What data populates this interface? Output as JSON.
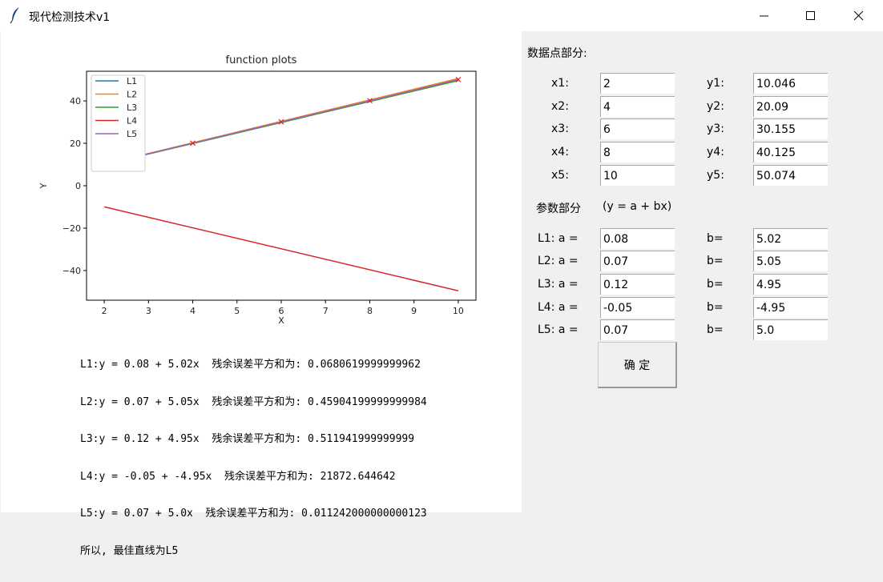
{
  "window": {
    "title": "现代检测技术v1",
    "icon": "feather-icon"
  },
  "plot": {
    "title": "function plots",
    "xlabel": "X",
    "ylabel": "Y"
  },
  "chart_data": {
    "type": "line",
    "title": "function plots",
    "xlabel": "X",
    "ylabel": "Y",
    "xlim": [
      1.6,
      10.4
    ],
    "ylim": [
      -54,
      54
    ],
    "xticks": [
      2,
      3,
      4,
      5,
      6,
      7,
      8,
      9,
      10
    ],
    "yticks": [
      -40,
      -20,
      0,
      20,
      40
    ],
    "legend": "top-left",
    "grid": false,
    "series": [
      {
        "name": "L1",
        "a": 0.08,
        "b": 5.02,
        "color": "#1f77b4"
      },
      {
        "name": "L2",
        "a": 0.07,
        "b": 5.05,
        "color": "#ff7f0e"
      },
      {
        "name": "L3",
        "a": 0.12,
        "b": 4.95,
        "color": "#2ca02c"
      },
      {
        "name": "L4",
        "a": -0.05,
        "b": -4.95,
        "color": "#d62728"
      },
      {
        "name": "L5",
        "a": 0.07,
        "b": 5.0,
        "color": "#9467bd"
      }
    ],
    "points": {
      "x": [
        2,
        4,
        6,
        8,
        10
      ],
      "y": [
        10.046,
        20.09,
        30.155,
        40.125,
        50.074
      ],
      "marker": "x",
      "color": "#d62728"
    }
  },
  "results": [
    "L1:y = 0.08 + 5.02x  残余误差平方和为: 0.0680619999999962",
    "L2:y = 0.07 + 5.05x  残余误差平方和为: 0.45904199999999984",
    "L3:y = 0.12 + 4.95x  残余误差平方和为: 0.511941999999999",
    "L4:y = -0.05 + -4.95x  残余误差平方和为: 21872.644642",
    "L5:y = 0.07 + 5.0x  残余误差平方和为: 0.011242000000000123",
    "所以, 最佳直线为L5"
  ],
  "form": {
    "data_header": "数据点部分:",
    "points": [
      {
        "xlabel": "x1:",
        "x": "2",
        "ylabel": "y1:",
        "y": "10.046"
      },
      {
        "xlabel": "x2:",
        "x": "4",
        "ylabel": "y2:",
        "y": "20.09"
      },
      {
        "xlabel": "x3:",
        "x": "6",
        "ylabel": "y3:",
        "y": "30.155"
      },
      {
        "xlabel": "x4:",
        "x": "8",
        "ylabel": "y4:",
        "y": "40.125"
      },
      {
        "xlabel": "x5:",
        "x": "10",
        "ylabel": "y5:",
        "y": "50.074"
      }
    ],
    "param_header": "参数部分",
    "formula": "(y = a + bx)",
    "params": [
      {
        "alabel": "L1:  a =",
        "a": "0.08",
        "blabel": "b=",
        "b": "5.02"
      },
      {
        "alabel": "L2:  a =",
        "a": "0.07",
        "blabel": "b=",
        "b": "5.05"
      },
      {
        "alabel": "L3:  a =",
        "a": "0.12",
        "blabel": "b=",
        "b": "4.95"
      },
      {
        "alabel": "L4:  a =",
        "a": "-0.05",
        "blabel": "b=",
        "b": "-4.95"
      },
      {
        "alabel": "L5:  a =",
        "a": "0.07",
        "blabel": "b=",
        "b": "5.0"
      }
    ],
    "confirm_label": "确 定"
  }
}
